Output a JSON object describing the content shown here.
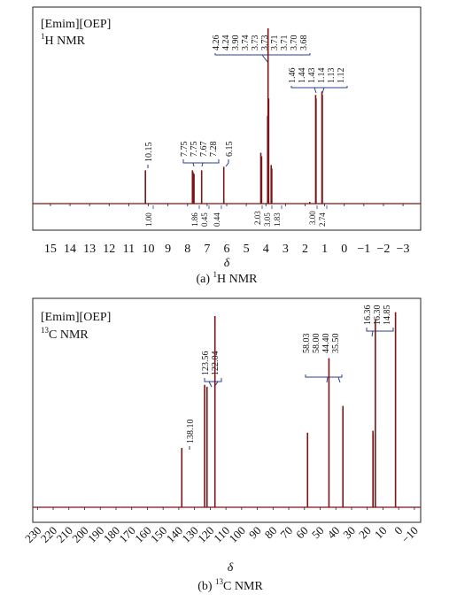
{
  "colors": {
    "spectrum": "#7a1518",
    "peak_label": "#2a3f8f",
    "axis": "#222222",
    "frame": "#222222"
  },
  "chart_data": [
    {
      "type": "line",
      "panel": "H",
      "title_line1": "[Emim][OEP]",
      "title_line2_sup": "1",
      "title_line2_main": "H NMR",
      "xlabel": "δ",
      "caption_pre": "(a) ",
      "caption_sup": "1",
      "caption_main": "H NMR",
      "xlim": [
        15.9,
        -3.9
      ],
      "x_reversed": true,
      "xticks": [
        "15",
        "14",
        "13",
        "12",
        "11",
        "10",
        "9",
        "8",
        "7",
        "6",
        "5",
        "4",
        "3",
        "2",
        "1",
        "0",
        "−1",
        "−2",
        "−3"
      ],
      "xtick_values": [
        15,
        14,
        13,
        12,
        11,
        10,
        9,
        8,
        7,
        6,
        5,
        4,
        3,
        2,
        1,
        0,
        -1,
        -2,
        -3
      ],
      "peaks": [
        {
          "x": 10.15,
          "y": 0.19
        },
        {
          "x": 7.75,
          "y": 0.19
        },
        {
          "x": 7.72,
          "y": 0.18
        },
        {
          "x": 7.67,
          "y": 0.17
        },
        {
          "x": 7.28,
          "y": 0.19
        },
        {
          "x": 6.15,
          "y": 0.21
        },
        {
          "x": 4.26,
          "y": 0.29
        },
        {
          "x": 4.22,
          "y": 0.27
        },
        {
          "x": 3.91,
          "y": 0.5
        },
        {
          "x": 3.89,
          "y": 1.0
        },
        {
          "x": 3.86,
          "y": 0.6
        },
        {
          "x": 3.73,
          "y": 0.22
        },
        {
          "x": 3.7,
          "y": 0.2
        },
        {
          "x": 1.46,
          "y": 0.62
        },
        {
          "x": 1.44,
          "y": 0.6
        },
        {
          "x": 1.14,
          "y": 0.64
        },
        {
          "x": 1.12,
          "y": 0.62
        },
        {
          "x": 1.76,
          "y": 0.01
        }
      ],
      "peak_labels": [
        {
          "group": 1,
          "items": [
            "10.15"
          ]
        },
        {
          "group": 2,
          "items": [
            "7.75",
            "7.75",
            "7.67",
            "7.28"
          ]
        },
        {
          "group": 3,
          "items": [
            "6.15"
          ]
        },
        {
          "group": 4,
          "items": [
            "4.26",
            "4.24",
            "3.90",
            "3.74",
            "3.73",
            "3.73",
            "3.71",
            "3.71",
            "3.70",
            "3.68"
          ]
        },
        {
          "group": 5,
          "items": [
            "1.46",
            "1.44",
            "1.43",
            "1.14",
            "1.13",
            "1.12"
          ]
        }
      ],
      "integrals": [
        {
          "x": 10.15,
          "label": "1.00"
        },
        {
          "x": 7.78,
          "label": "1.86"
        },
        {
          "x": 7.62,
          "label": "0.45"
        },
        {
          "x": 7.28,
          "label": "0.44"
        },
        {
          "x": 4.3,
          "label": "2.03"
        },
        {
          "x": 4.0,
          "label": "3.05"
        },
        {
          "x": 3.72,
          "label": "1.83"
        },
        {
          "x": 1.5,
          "label": "3.00"
        },
        {
          "x": 1.1,
          "label": "2.74"
        }
      ]
    },
    {
      "type": "line",
      "panel": "C",
      "title_line1": "[Emim][OEP]",
      "title_line2_sup": "13",
      "title_line2_main": "C NMR",
      "xlabel": "δ",
      "caption_pre": "(b) ",
      "caption_sup": "13",
      "caption_main": "C NMR",
      "xlim": [
        233,
        -14
      ],
      "x_reversed": true,
      "xticks": [
        "230",
        "220",
        "210",
        "200",
        "190",
        "180",
        "170",
        "160",
        "150",
        "140",
        "130",
        "120",
        "110",
        "100",
        "90",
        "80",
        "70",
        "60",
        "50",
        "40",
        "30",
        "20",
        "10",
        "0",
        "−10"
      ],
      "xtick_values": [
        230,
        220,
        210,
        200,
        190,
        180,
        170,
        160,
        150,
        140,
        130,
        120,
        110,
        100,
        90,
        80,
        70,
        60,
        50,
        40,
        30,
        20,
        10,
        0,
        -10
      ],
      "peaks": [
        {
          "x": 138.1,
          "y": 0.31
        },
        {
          "x": 123.56,
          "y": 0.64
        },
        {
          "x": 122.04,
          "y": 0.63
        },
        {
          "x": 117.0,
          "y": 1.0
        },
        {
          "x": 58.03,
          "y": 0.39
        },
        {
          "x": 44.4,
          "y": 0.78
        },
        {
          "x": 35.5,
          "y": 0.53
        },
        {
          "x": 16.36,
          "y": 0.4
        },
        {
          "x": 16.3,
          "y": 0.38
        },
        {
          "x": 14.85,
          "y": 0.98
        },
        {
          "x": 2.0,
          "y": 1.02
        }
      ],
      "peak_labels": [
        {
          "group": 1,
          "items": [
            "138.10"
          ]
        },
        {
          "group": 2,
          "items": [
            "123.56",
            "122.04"
          ]
        },
        {
          "group": 3,
          "items": [
            "58.03",
            "58.00",
            "44.40",
            "35.50"
          ]
        },
        {
          "group": 4,
          "items": [
            "16.36",
            "16.30",
            "14.85"
          ]
        }
      ]
    }
  ]
}
